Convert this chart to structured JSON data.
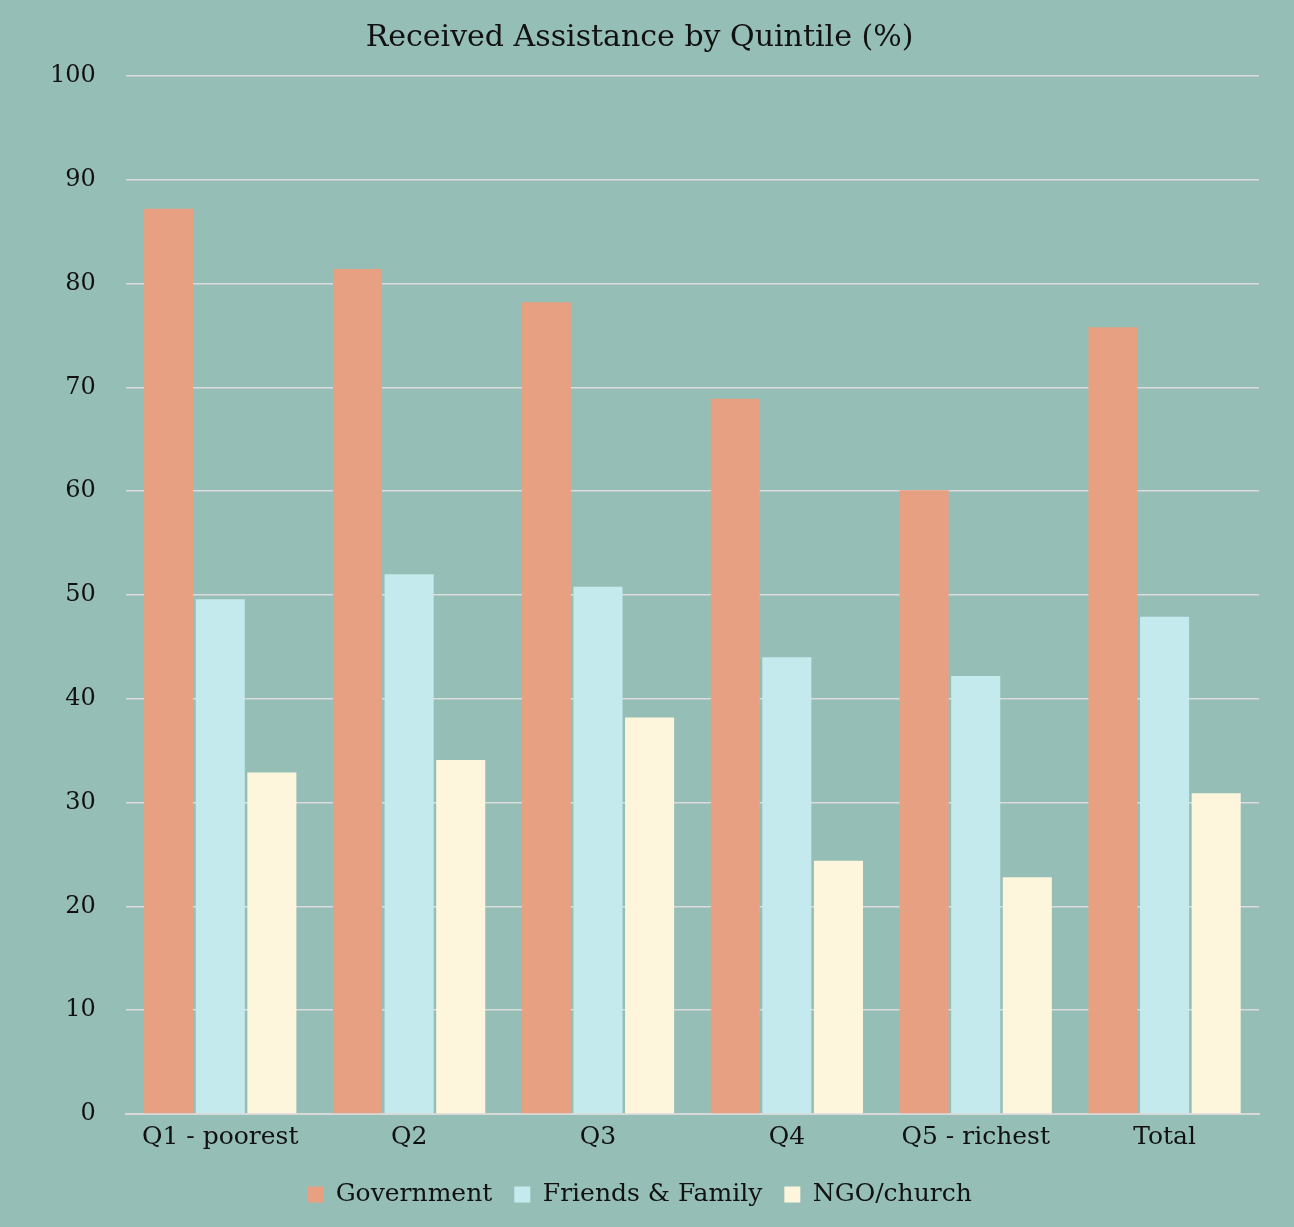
{
  "chart_data": {
    "type": "bar",
    "title": "Received Assistance by Quintile (%)",
    "categories": [
      "Q1 - poorest",
      "Q2",
      "Q3",
      "Q4",
      "Q5 - richest",
      "Total"
    ],
    "series": [
      {
        "name": "Government",
        "color": "#e8a082",
        "values": [
          87.2,
          81.4,
          78.2,
          68.9,
          60.1,
          75.8
        ]
      },
      {
        "name": "Friends & Family",
        "color": "#c5eaee",
        "values": [
          49.6,
          52.0,
          50.8,
          44.0,
          42.2,
          47.9
        ]
      },
      {
        "name": "NGO/church",
        "color": "#fdf5dc",
        "values": [
          32.9,
          34.1,
          38.2,
          24.4,
          22.8,
          30.9
        ]
      }
    ],
    "ylim": [
      0,
      100
    ],
    "yticks": [
      0,
      10,
      20,
      30,
      40,
      50,
      60,
      70,
      80,
      90,
      100
    ],
    "grid": "y",
    "legend": "bottom"
  }
}
